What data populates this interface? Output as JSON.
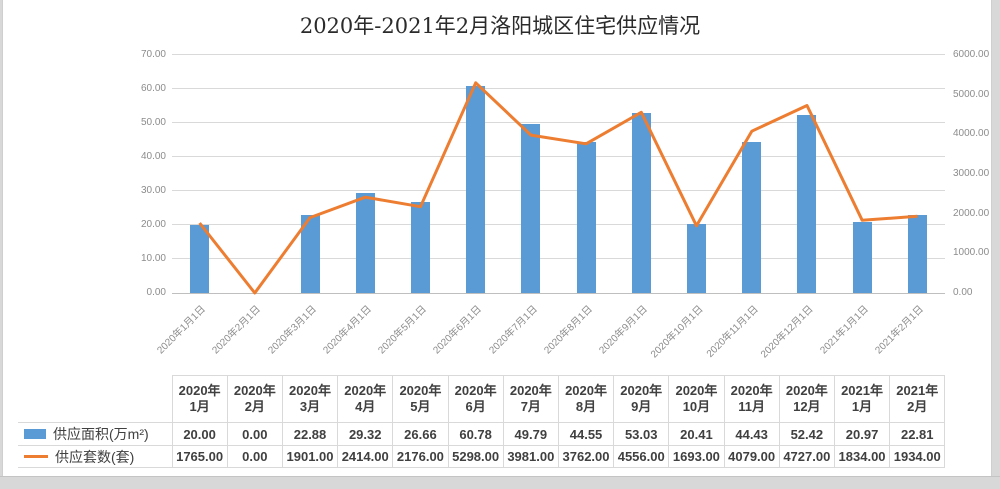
{
  "chart_data": {
    "type": "combo",
    "title": "2020年-2021年2月洛阳城区住宅供应情况",
    "categories": [
      "2020年1月1日",
      "2020年2月1日",
      "2020年3月1日",
      "2020年4月1日",
      "2020年5月1日",
      "2020年6月1日",
      "2020年7月1日",
      "2020年8月1日",
      "2020年9月1日",
      "2020年10月1日",
      "2020年11月1日",
      "2020年12月1日",
      "2021年1月1日",
      "2021年2月1日"
    ],
    "series": [
      {
        "name": "供应面积(万m²)",
        "type": "bar",
        "color": "#5B9BD5",
        "axis": "left",
        "values": [
          20.0,
          0.0,
          22.88,
          29.32,
          26.66,
          60.78,
          49.79,
          44.55,
          53.03,
          20.41,
          44.43,
          52.42,
          20.97,
          22.81
        ]
      },
      {
        "name": "供应套数(套)",
        "type": "line",
        "color": "#ED7D31",
        "axis": "right",
        "values": [
          1765.0,
          0.0,
          1901.0,
          2414.0,
          2176.0,
          5298.0,
          3981.0,
          3762.0,
          4556.0,
          1693.0,
          4079.0,
          4727.0,
          1834.0,
          1934.0
        ]
      }
    ],
    "left_axis": {
      "min": 0,
      "max": 70,
      "step": 10,
      "ticks": [
        "0.00",
        "10.00",
        "20.00",
        "30.00",
        "40.00",
        "50.00",
        "60.00",
        "70.00"
      ]
    },
    "right_axis": {
      "min": 0,
      "max": 6000,
      "step": 1000,
      "ticks": [
        "0.00",
        "1000.00",
        "2000.00",
        "3000.00",
        "4000.00",
        "5000.00",
        "6000.00"
      ]
    },
    "grid": true,
    "legend_position": "table-left",
    "value_format": "0.00",
    "table": {
      "headers": [
        [
          "2020年",
          "1月"
        ],
        [
          "2020年",
          "2月"
        ],
        [
          "2020年",
          "3月"
        ],
        [
          "2020年",
          "4月"
        ],
        [
          "2020年",
          "5月"
        ],
        [
          "2020年",
          "6月"
        ],
        [
          "2020年",
          "7月"
        ],
        [
          "2020年",
          "8月"
        ],
        [
          "2020年",
          "9月"
        ],
        [
          "2020年",
          "10月"
        ],
        [
          "2020年",
          "11月"
        ],
        [
          "2020年",
          "12月"
        ],
        [
          "2021年",
          "1月"
        ],
        [
          "2021年",
          "2月"
        ]
      ],
      "rows": [
        {
          "label": "供应面积(万m²)",
          "swatch": "bar",
          "values": [
            "20.00",
            "0.00",
            "22.88",
            "29.32",
            "26.66",
            "60.78",
            "49.79",
            "44.55",
            "53.03",
            "20.41",
            "44.43",
            "52.42",
            "20.97",
            "22.81"
          ]
        },
        {
          "label": "供应套数(套)",
          "swatch": "line",
          "values": [
            "1765.00",
            "0.00",
            "1901.00",
            "2414.00",
            "2176.00",
            "5298.00",
            "3981.00",
            "3762.00",
            "4556.00",
            "1693.00",
            "4079.00",
            "4727.00",
            "1834.00",
            "1934.00"
          ]
        }
      ]
    },
    "colors": {
      "bar": "#5B9BD5",
      "line": "#ED7D31",
      "gridline": "#d9d9d9",
      "axis_text": "#8c8c8c"
    }
  }
}
